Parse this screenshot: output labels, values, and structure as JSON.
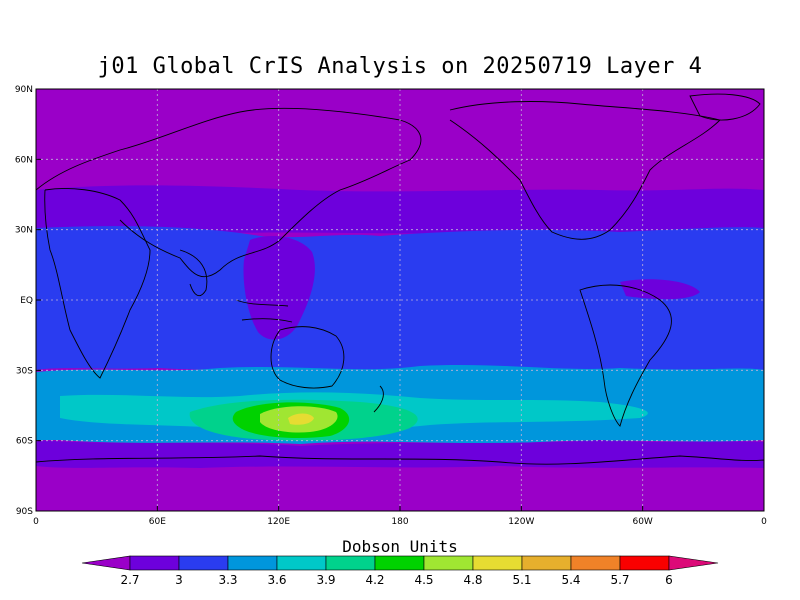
{
  "title": "j01 Global CrIS Analysis on 20250719 Layer 4",
  "y_tick_labels": [
    "90N",
    "60N",
    "30N",
    "EQ",
    "30S",
    "60S",
    "90S"
  ],
  "x_tick_labels": [
    "0",
    "60E",
    "120E",
    "180",
    "120W",
    "60W",
    "0"
  ],
  "colorbar": {
    "title": "Dobson Units",
    "labels": [
      "2.7",
      "3",
      "3.3",
      "3.6",
      "3.9",
      "4.2",
      "4.5",
      "4.8",
      "5.1",
      "5.4",
      "5.7",
      "6"
    ],
    "colors": [
      "#9a00c8",
      "#6d00dc",
      "#2a3cf0",
      "#0096dc",
      "#00c8c8",
      "#00d28c",
      "#00d200",
      "#a0e632",
      "#e6dc32",
      "#e6af2d",
      "#f08228",
      "#fa0000",
      "#dc0a78"
    ]
  },
  "regions": {
    "polar_color": "#9a00c8",
    "midlat_color": "#6d00dc",
    "tropics_color": "#2a3cf0",
    "south_band_color": "#0096dc",
    "anomaly_colors": [
      "#00c8c8",
      "#00d28c",
      "#00d200",
      "#a0e632",
      "#e6dc32"
    ]
  }
}
